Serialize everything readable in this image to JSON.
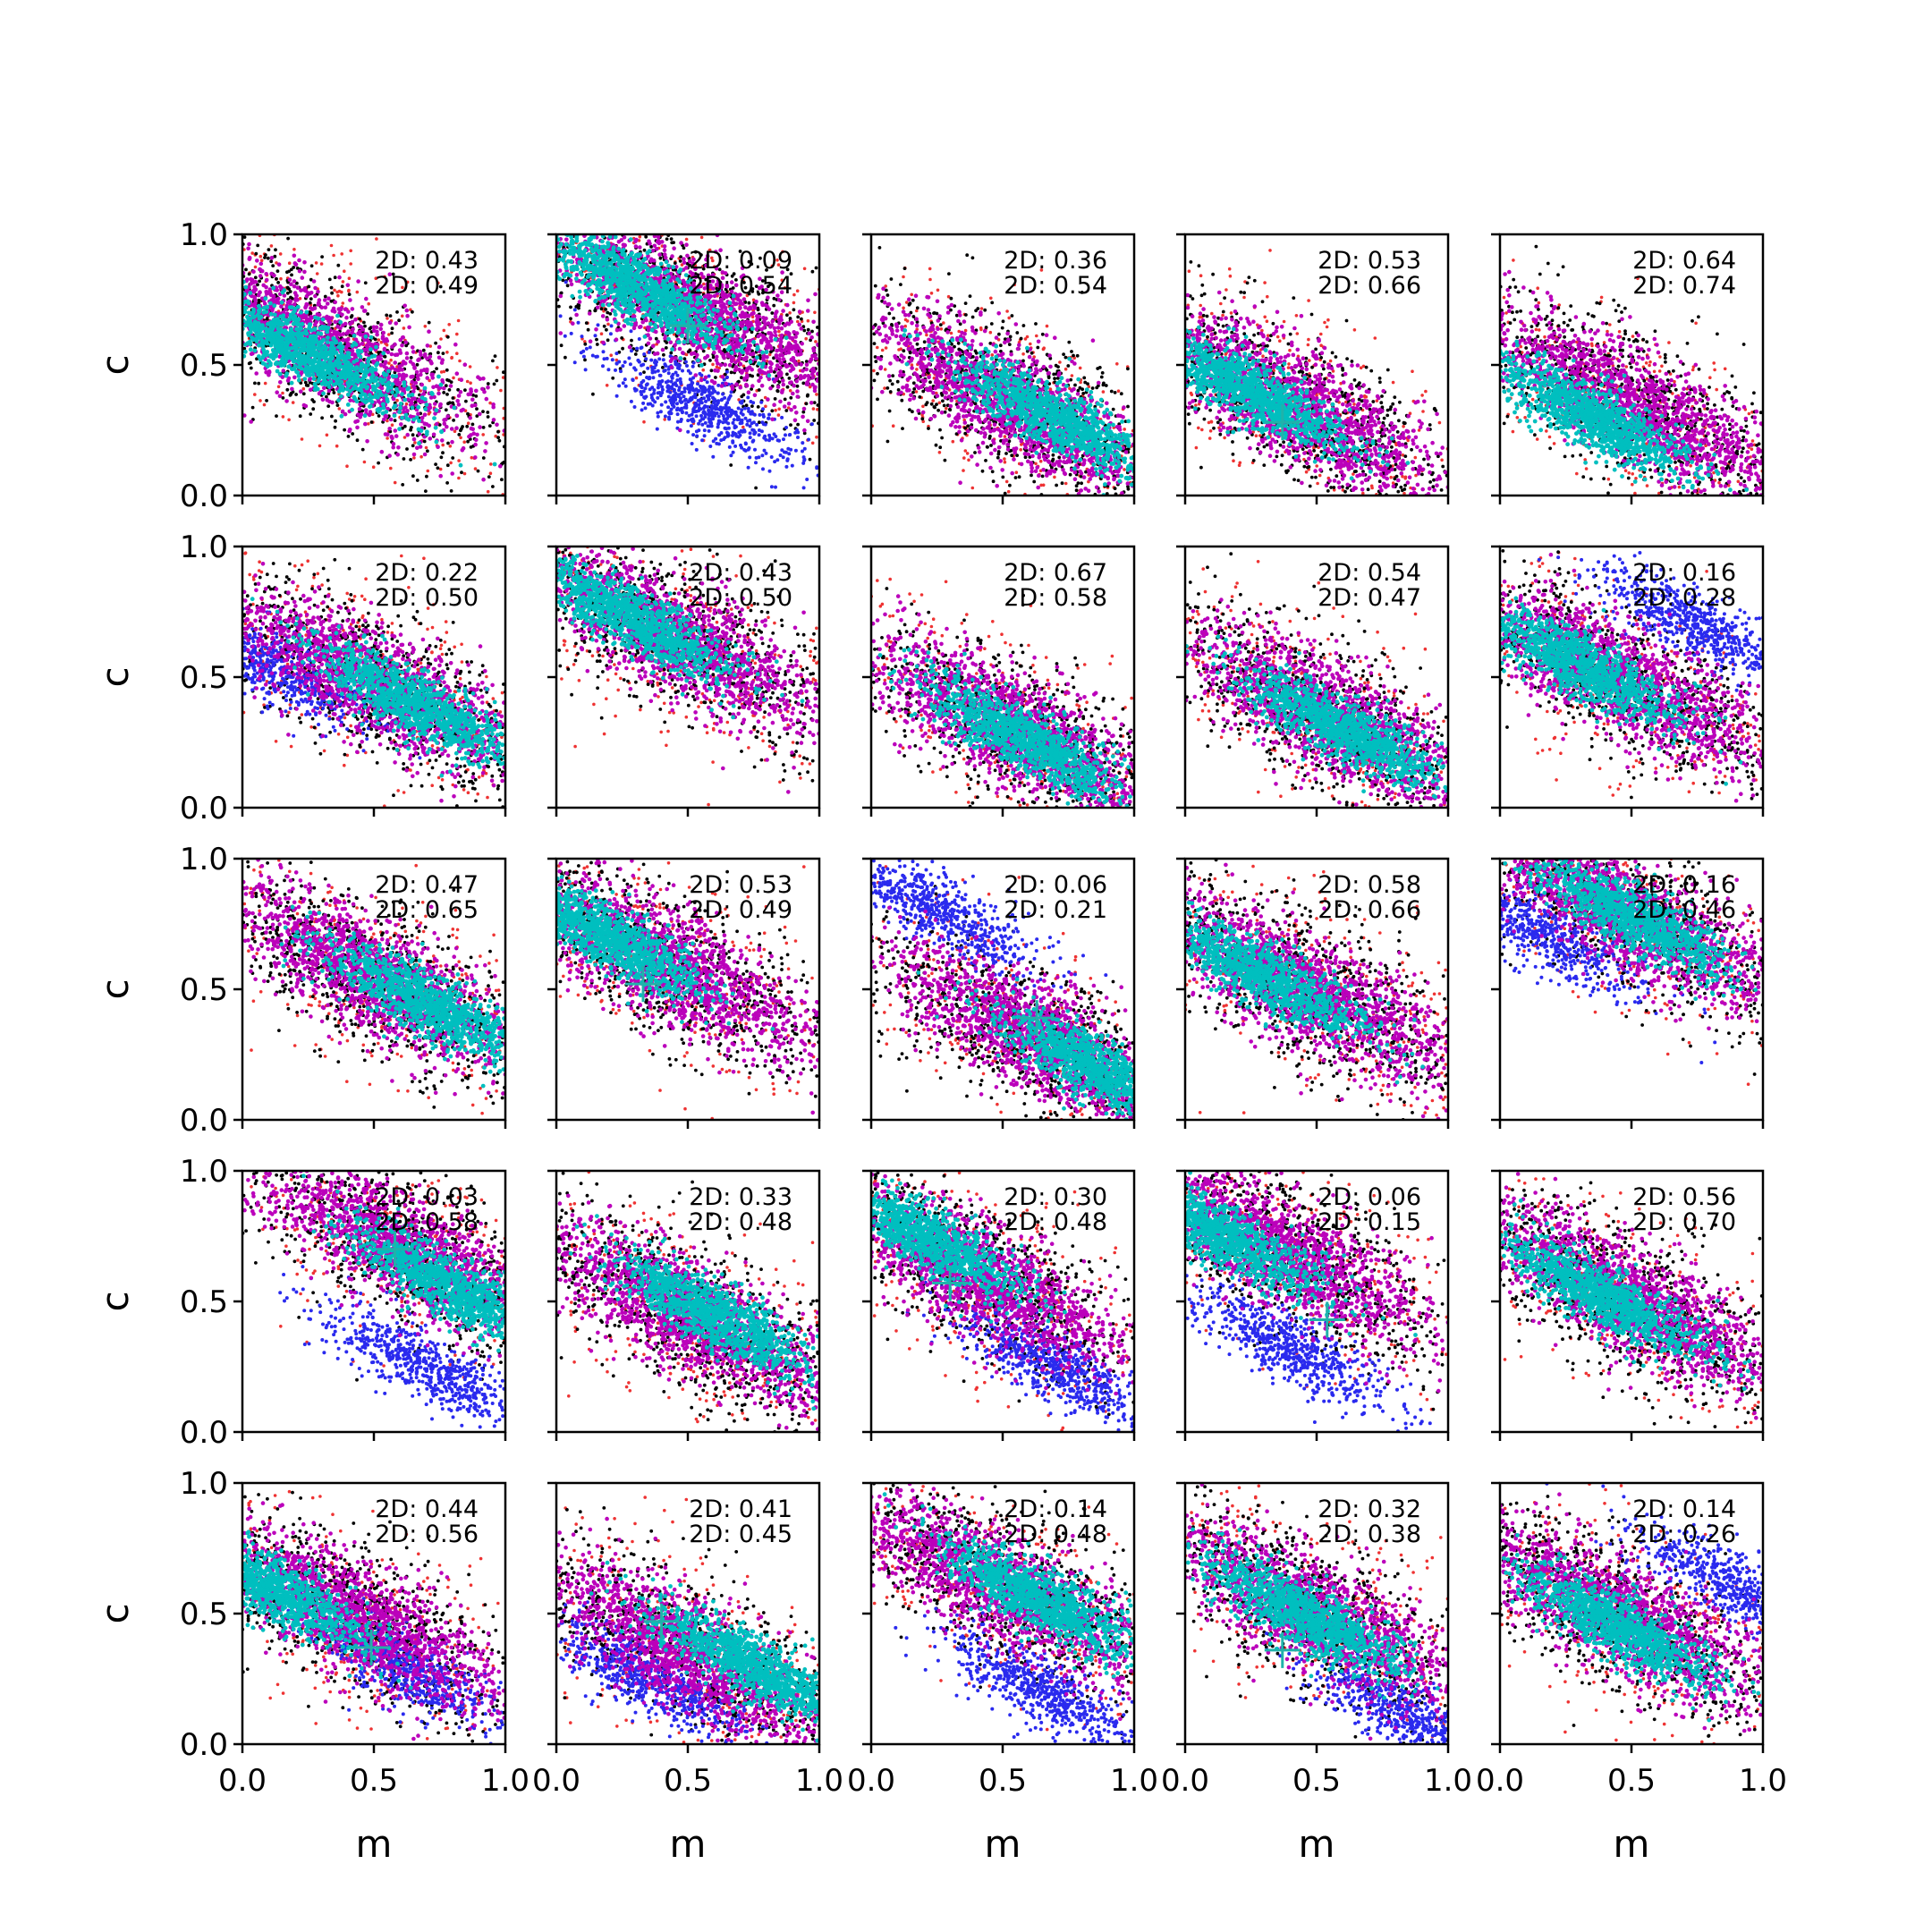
{
  "chart_data": {
    "type": "scatter",
    "layout": "5x5 grid of subplots with shared axes",
    "xlabel": "m",
    "ylabel": "c",
    "xlim": [
      0.0,
      1.0
    ],
    "ylim": [
      0.0,
      1.0
    ],
    "xticks": [
      "0.0",
      "0.5",
      "1.0"
    ],
    "yticks": [
      "0.0",
      "0.5",
      "1.0"
    ],
    "grid": false,
    "colors": {
      "outer_red": "#ee3333",
      "black": "#000000",
      "blue": "#2a2aee",
      "magenta": "#bb00bb",
      "cyan": "#00bfbf",
      "marker": "#20b2aa"
    },
    "annotation_prefix": "2D:",
    "panels": [
      {
        "row": 0,
        "col": 0,
        "annot": [
          "2D: 0.43",
          "2D: 0.49"
        ],
        "center": [
          0.3,
          0.58
        ],
        "cyan_center": [
          0.25,
          0.55
        ],
        "slope": -0.55,
        "blue_center": null,
        "truth": null
      },
      {
        "row": 0,
        "col": 1,
        "annot": [
          "2D: 0.09",
          "2D: 0.54"
        ],
        "center": [
          0.5,
          0.72
        ],
        "cyan_center": [
          0.3,
          0.8
        ],
        "slope": -0.55,
        "blue_center": [
          0.55,
          0.35
        ],
        "truth": [
          0.5,
          0.65
        ]
      },
      {
        "row": 0,
        "col": 2,
        "annot": [
          "2D: 0.36",
          "2D: 0.54"
        ],
        "center": [
          0.55,
          0.35
        ],
        "cyan_center": [
          0.7,
          0.3
        ],
        "slope": -0.55,
        "blue_center": null,
        "truth": null
      },
      {
        "row": 0,
        "col": 3,
        "annot": [
          "2D: 0.53",
          "2D: 0.66"
        ],
        "center": [
          0.4,
          0.35
        ],
        "cyan_center": [
          0.25,
          0.4
        ],
        "slope": -0.55,
        "blue_center": null,
        "truth": [
          0.37,
          0.28
        ]
      },
      {
        "row": 0,
        "col": 4,
        "annot": [
          "2D: 0.64",
          "2D: 0.74"
        ],
        "center": [
          0.5,
          0.35
        ],
        "cyan_center": [
          0.35,
          0.3
        ],
        "slope": -0.55,
        "blue_center": null,
        "truth": null
      },
      {
        "row": 1,
        "col": 0,
        "annot": [
          "2D: 0.22",
          "2D: 0.50"
        ],
        "center": [
          0.5,
          0.48
        ],
        "cyan_center": [
          0.65,
          0.4
        ],
        "slope": -0.55,
        "blue_center": [
          0.1,
          0.55
        ],
        "truth": null
      },
      {
        "row": 1,
        "col": 1,
        "annot": [
          "2D: 0.43",
          "2D: 0.50"
        ],
        "center": [
          0.45,
          0.65
        ],
        "cyan_center": [
          0.3,
          0.72
        ],
        "slope": -0.55,
        "blue_center": null,
        "truth": null
      },
      {
        "row": 1,
        "col": 2,
        "annot": [
          "2D: 0.67",
          "2D: 0.58"
        ],
        "center": [
          0.55,
          0.3
        ],
        "cyan_center": [
          0.6,
          0.25
        ],
        "slope": -0.55,
        "blue_center": null,
        "truth": null
      },
      {
        "row": 1,
        "col": 3,
        "annot": [
          "2D: 0.54",
          "2D: 0.47"
        ],
        "center": [
          0.55,
          0.35
        ],
        "cyan_center": [
          0.6,
          0.3
        ],
        "slope": -0.55,
        "blue_center": null,
        "truth": null
      },
      {
        "row": 1,
        "col": 4,
        "annot": [
          "2D: 0.16",
          "2D: 0.28"
        ],
        "center": [
          0.45,
          0.5
        ],
        "cyan_center": [
          0.3,
          0.55
        ],
        "slope": -0.55,
        "blue_center": [
          0.75,
          0.7
        ],
        "truth": null
      },
      {
        "row": 2,
        "col": 0,
        "annot": [
          "2D: 0.47",
          "2D: 0.65"
        ],
        "center": [
          0.5,
          0.55
        ],
        "cyan_center": [
          0.7,
          0.45
        ],
        "slope": -0.55,
        "blue_center": null,
        "truth": null
      },
      {
        "row": 2,
        "col": 1,
        "annot": [
          "2D: 0.53",
          "2D: 0.49"
        ],
        "center": [
          0.4,
          0.6
        ],
        "cyan_center": [
          0.2,
          0.7
        ],
        "slope": -0.55,
        "blue_center": null,
        "truth": [
          0.33,
          0.52
        ]
      },
      {
        "row": 2,
        "col": 2,
        "annot": [
          "2D: 0.06",
          "2D: 0.21"
        ],
        "center": [
          0.65,
          0.3
        ],
        "cyan_center": [
          0.85,
          0.2
        ],
        "slope": -0.55,
        "blue_center": [
          0.25,
          0.8
        ],
        "truth": [
          0.63,
          0.39
        ]
      },
      {
        "row": 2,
        "col": 3,
        "annot": [
          "2D: 0.58",
          "2D: 0.66"
        ],
        "center": [
          0.45,
          0.5
        ],
        "cyan_center": [
          0.3,
          0.55
        ],
        "slope": -0.55,
        "blue_center": null,
        "truth": null
      },
      {
        "row": 2,
        "col": 4,
        "annot": [
          "2D: 0.16",
          "2D: 0.46"
        ],
        "center": [
          0.5,
          0.78
        ],
        "cyan_center": [
          0.5,
          0.78
        ],
        "slope": -0.55,
        "blue_center": [
          0.15,
          0.72
        ],
        "truth": null
      },
      {
        "row": 3,
        "col": 0,
        "annot": [
          "2D: 0.03",
          "2D: 0.58"
        ],
        "center": [
          0.65,
          0.68
        ],
        "cyan_center": [
          0.8,
          0.55
        ],
        "slope": -0.55,
        "blue_center": [
          0.7,
          0.25
        ],
        "truth": [
          0.58,
          0.7
        ]
      },
      {
        "row": 3,
        "col": 1,
        "annot": [
          "2D: 0.33",
          "2D: 0.48"
        ],
        "center": [
          0.5,
          0.45
        ],
        "cyan_center": [
          0.6,
          0.45
        ],
        "slope": -0.55,
        "blue_center": null,
        "truth": null
      },
      {
        "row": 3,
        "col": 2,
        "annot": [
          "2D: 0.30",
          "2D: 0.48"
        ],
        "center": [
          0.4,
          0.6
        ],
        "cyan_center": [
          0.2,
          0.75
        ],
        "slope": -0.55,
        "blue_center": [
          0.7,
          0.25
        ],
        "truth": [
          0.3,
          0.57
        ]
      },
      {
        "row": 3,
        "col": 3,
        "annot": [
          "2D: 0.06",
          "2D: 0.15"
        ],
        "center": [
          0.35,
          0.7
        ],
        "cyan_center": [
          0.15,
          0.75
        ],
        "slope": -0.55,
        "blue_center": [
          0.4,
          0.32
        ],
        "truth": [
          0.54,
          0.43
        ]
      },
      {
        "row": 3,
        "col": 4,
        "annot": [
          "2D: 0.56",
          "2D: 0.70"
        ],
        "center": [
          0.5,
          0.5
        ],
        "cyan_center": [
          0.4,
          0.52
        ],
        "slope": -0.55,
        "blue_center": null,
        "truth": null
      },
      {
        "row": 4,
        "col": 0,
        "annot": [
          "2D: 0.44",
          "2D: 0.56"
        ],
        "center": [
          0.4,
          0.5
        ],
        "cyan_center": [
          0.1,
          0.6
        ],
        "slope": -0.55,
        "blue_center": [
          0.6,
          0.3
        ],
        "truth": [
          0.49,
          0.37
        ]
      },
      {
        "row": 4,
        "col": 1,
        "annot": [
          "2D: 0.41",
          "2D: 0.45"
        ],
        "center": [
          0.5,
          0.35
        ],
        "cyan_center": [
          0.75,
          0.3
        ],
        "slope": -0.55,
        "blue_center": [
          0.35,
          0.25
        ],
        "truth": [
          0.4,
          0.47
        ]
      },
      {
        "row": 4,
        "col": 2,
        "annot": [
          "2D: 0.14",
          "2D: 0.48"
        ],
        "center": [
          0.5,
          0.6
        ],
        "cyan_center": [
          0.65,
          0.55
        ],
        "slope": -0.55,
        "blue_center": [
          0.65,
          0.2
        ],
        "truth": null
      },
      {
        "row": 4,
        "col": 3,
        "annot": [
          "2D: 0.32",
          "2D: 0.38"
        ],
        "center": [
          0.5,
          0.5
        ],
        "cyan_center": [
          0.45,
          0.5
        ],
        "slope": -0.55,
        "blue_center": [
          0.85,
          0.1
        ],
        "truth": [
          0.37,
          0.36
        ]
      },
      {
        "row": 4,
        "col": 4,
        "annot": [
          "2D: 0.14",
          "2D: 0.26"
        ],
        "center": [
          0.45,
          0.5
        ],
        "cyan_center": [
          0.45,
          0.45
        ],
        "slope": -0.55,
        "blue_center": [
          0.9,
          0.6
        ],
        "truth": null
      }
    ]
  }
}
